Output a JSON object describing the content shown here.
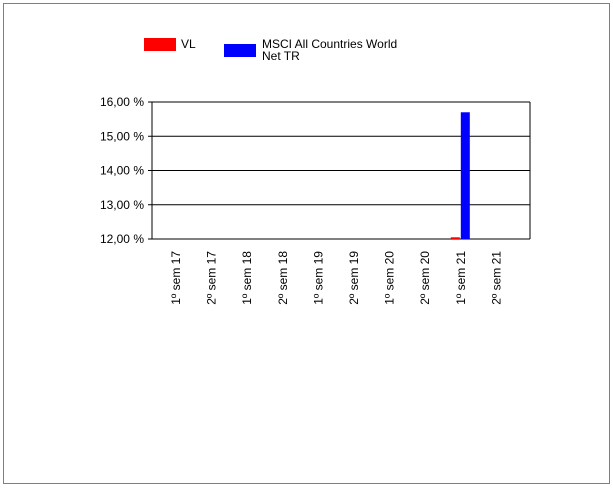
{
  "colors": {
    "vl": "#ff0000",
    "msci": "#0000ff",
    "axis": "#000000",
    "frame_border": "#7f7f7f",
    "background": "#ffffff"
  },
  "legend": {
    "items": [
      {
        "label_lines": [
          "VL"
        ],
        "color": "#ff0000"
      },
      {
        "label_lines": [
          "MSCI All Countries World",
          "Net TR"
        ],
        "color": "#0000ff"
      }
    ]
  },
  "chart_data": {
    "type": "bar",
    "title": "",
    "xlabel": "",
    "ylabel": "",
    "categories": [
      "1º sem 17",
      "2º sem 17",
      "1º sem 18",
      "2º sem 18",
      "1º sem 19",
      "2º sem 19",
      "1º sem 20",
      "2º sem 20",
      "1º sem 21",
      "2º sem 21"
    ],
    "series": [
      {
        "name": "VL",
        "values": [
          null,
          null,
          null,
          null,
          null,
          null,
          null,
          null,
          12.05,
          null
        ]
      },
      {
        "name": "MSCI All Countries World Net TR",
        "values": [
          null,
          null,
          null,
          null,
          null,
          null,
          null,
          null,
          15.7,
          null
        ]
      }
    ],
    "ylim": [
      12,
      16
    ],
    "yticks": [
      16,
      15,
      14,
      13,
      12
    ],
    "ytick_labels": [
      "16,00 %",
      "15,00 %",
      "14,00 %",
      "13,00 %",
      "12,00 %"
    ],
    "grid": true,
    "legend_position": "top"
  }
}
